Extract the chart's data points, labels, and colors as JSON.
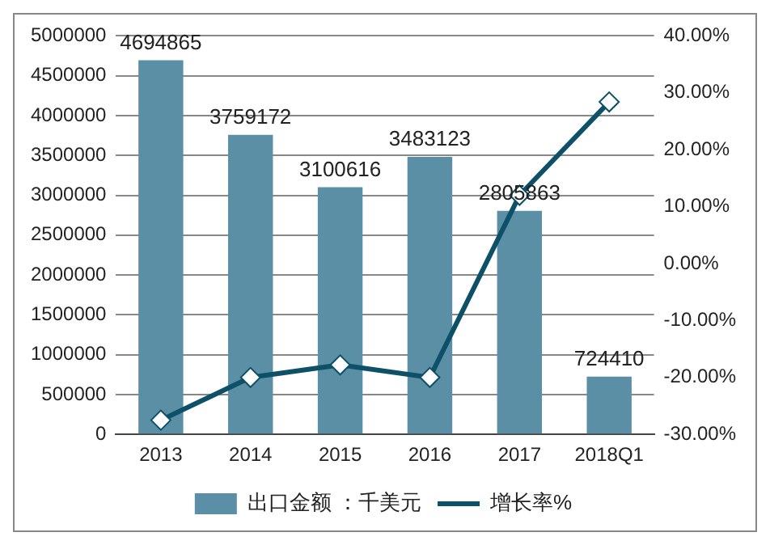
{
  "chart_data": {
    "type": "bar",
    "categories": [
      "2013",
      "2014",
      "2015",
      "2016",
      "2017",
      "2018Q1"
    ],
    "series": [
      {
        "name": "出口金额 ：千美元",
        "color": "#5b8fa6",
        "values": [
          4694865,
          3759172,
          3100616,
          3483123,
          2805863,
          724410
        ],
        "value_labels": [
          "4694865",
          "3759172",
          "3100616",
          "3483123",
          "2805863",
          "724410"
        ]
      },
      {
        "name": "增长率%",
        "type": "line",
        "axis": "y2",
        "color": "#0e5068",
        "values": [
          -27.5,
          -20,
          -17.8,
          -20,
          12,
          28.4
        ]
      }
    ],
    "ylim": [
      0,
      5000000
    ],
    "yticks": [
      0,
      500000,
      1000000,
      1500000,
      2000000,
      2500000,
      3000000,
      3500000,
      4000000,
      4500000,
      5000000
    ],
    "y2lim": [
      -30,
      40
    ],
    "y2ticks": [
      {
        "value": -30,
        "label": "-30.00%"
      },
      {
        "value": -20,
        "label": "-20.00%"
      },
      {
        "value": -10,
        "label": "-10.00%"
      },
      {
        "value": 0,
        "label": "0.00%"
      },
      {
        "value": 10,
        "label": "10.00%"
      },
      {
        "value": 20,
        "label": "20.00%"
      },
      {
        "value": 30,
        "label": "30.00%"
      },
      {
        "value": 40,
        "label": "40.00%"
      }
    ],
    "grid": "y",
    "legend": "bottom",
    "marker": "diamond",
    "line_style": "solid"
  }
}
